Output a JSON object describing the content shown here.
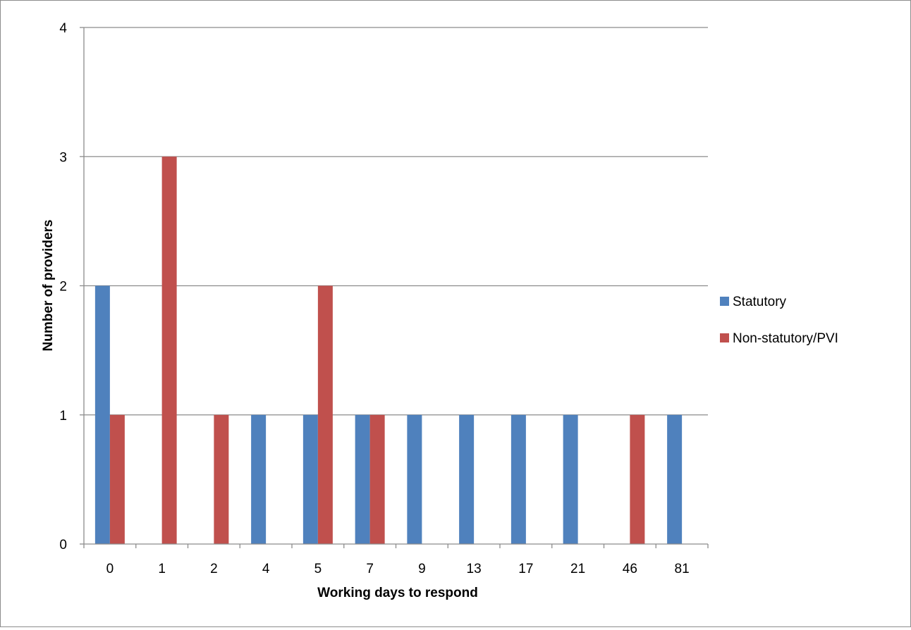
{
  "chart_data": {
    "type": "bar",
    "title": "",
    "xlabel": "Working days to respond",
    "ylabel": "Number of providers",
    "categories": [
      "0",
      "1",
      "2",
      "4",
      "5",
      "7",
      "9",
      "13",
      "17",
      "21",
      "46",
      "81"
    ],
    "series": [
      {
        "name": "Statutory",
        "color": "#4f81bd",
        "values": [
          2,
          0,
          0,
          1,
          1,
          1,
          1,
          1,
          1,
          1,
          0,
          1
        ]
      },
      {
        "name": "Non-statutory/PVI",
        "color": "#c0504d",
        "values": [
          1,
          3,
          1,
          0,
          2,
          1,
          0,
          0,
          0,
          0,
          1,
          0
        ]
      }
    ],
    "ylim": [
      0,
      4
    ],
    "yticks": [
      "0",
      "1",
      "2",
      "3",
      "4"
    ],
    "grid": true,
    "legend": "right"
  }
}
